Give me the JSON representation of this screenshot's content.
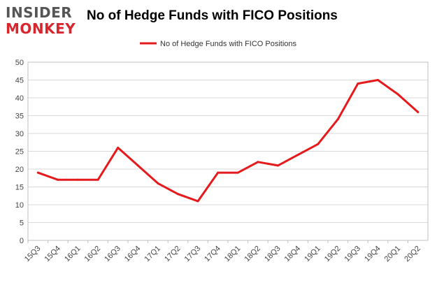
{
  "logo": {
    "line1": "INSIDER",
    "line2": "MONKEY"
  },
  "colors": {
    "line": "#e41a1c",
    "grid": "#d9d9d9",
    "axis": "#bfbfbf",
    "logo_red": "#d7262e"
  },
  "chart_data": {
    "type": "line",
    "title": "No of Hedge Funds with FICO Positions",
    "categories": [
      "15Q3",
      "15Q4",
      "16Q1",
      "16Q2",
      "16Q3",
      "16Q4",
      "17Q1",
      "17Q2",
      "17Q3",
      "17Q4",
      "18Q1",
      "18Q2",
      "18Q3",
      "18Q4",
      "19Q1",
      "19Q2",
      "19Q3",
      "19Q4",
      "20Q1",
      "20Q2"
    ],
    "series": [
      {
        "name": "No of Hedge Funds with FICO Positions",
        "values": [
          19,
          17,
          17,
          17,
          26,
          21,
          16,
          13,
          11,
          19,
          19,
          22,
          21,
          24,
          27,
          34,
          44,
          45,
          41,
          36
        ]
      }
    ],
    "ylim": [
      0,
      50
    ],
    "yticks": [
      0,
      5,
      10,
      15,
      20,
      25,
      30,
      35,
      40,
      45,
      50
    ],
    "xlabel": "",
    "ylabel": "",
    "legend": "top-center",
    "grid": true
  }
}
